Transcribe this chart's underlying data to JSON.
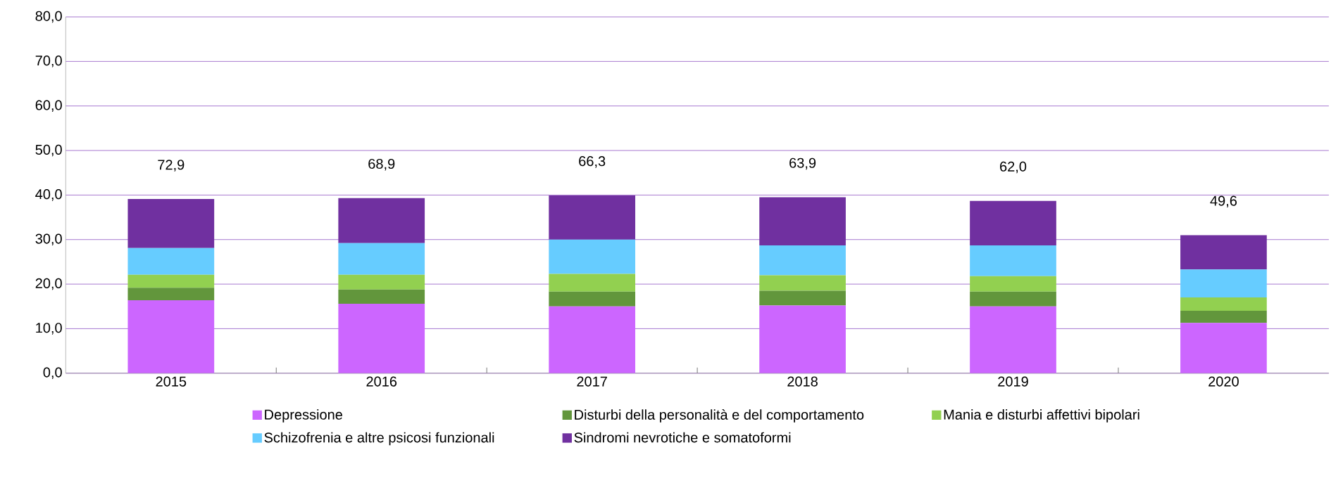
{
  "chart_data": {
    "type": "bar",
    "stacked": true,
    "categories": [
      "2015",
      "2016",
      "2017",
      "2018",
      "2019",
      "2020"
    ],
    "series": [
      {
        "name": "Depressione",
        "color": "#cc66ff",
        "values": [
          16.4,
          15.6,
          15.0,
          15.2,
          15.0,
          11.3
        ]
      },
      {
        "name": "Disturbi della personalità e del comportamento",
        "color": "#62963c",
        "values": [
          2.8,
          3.2,
          3.3,
          3.3,
          3.3,
          2.7
        ]
      },
      {
        "name": "Mania e disturbi affettivi bipolari",
        "color": "#92d050",
        "values": [
          2.9,
          3.3,
          4.0,
          3.5,
          3.5,
          3.0
        ]
      },
      {
        "name": "Schizofrenia e altre psicosi funzionali",
        "color": "#66ccff",
        "values": [
          6.0,
          7.1,
          7.7,
          6.7,
          6.9,
          6.3
        ]
      },
      {
        "name": "Sindromi nevrotiche e somatoformi",
        "color": "#7030a0",
        "values": [
          11.0,
          10.1,
          9.9,
          10.8,
          10.0,
          7.7
        ]
      }
    ],
    "annotations": [
      "72,9",
      "68,9",
      "66,3",
      "63,9",
      "62,0",
      "49,6"
    ],
    "ylim": [
      0,
      80
    ],
    "yticks": [
      {
        "value": 0,
        "label": "0,0"
      },
      {
        "value": 10,
        "label": "10,0"
      },
      {
        "value": 20,
        "label": "20,0"
      },
      {
        "value": 30,
        "label": "30,0"
      },
      {
        "value": 40,
        "label": "40,0"
      },
      {
        "value": 50,
        "label": "50,0"
      },
      {
        "value": 60,
        "label": "60,0"
      },
      {
        "value": 70,
        "label": "70,0"
      },
      {
        "value": 80,
        "label": "80,0"
      }
    ],
    "grid": "y",
    "legend": "bottom"
  }
}
